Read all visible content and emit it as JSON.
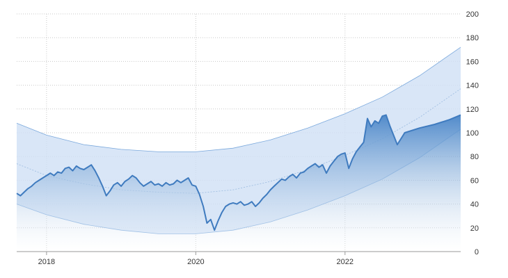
{
  "chart_data": {
    "type": "line",
    "title": "",
    "xlabel": "",
    "ylabel": "",
    "xlim": [
      2017.6,
      2023.55
    ],
    "ylim": [
      0,
      200
    ],
    "x_ticks": [
      2018,
      2020,
      2022
    ],
    "x_tick_labels": [
      "2018",
      "2020",
      "2022"
    ],
    "y_ticks": [
      0,
      20,
      40,
      60,
      80,
      100,
      120,
      140,
      160,
      180,
      200
    ],
    "y_tick_labels": [
      "0",
      "20",
      "40",
      "60",
      "80",
      "100",
      "120",
      "140",
      "160",
      "180",
      "200"
    ],
    "y_axis_side": "right",
    "grid": true,
    "legend": "none",
    "colors": {
      "line": "#3f7bbf",
      "fill_top": "#4a86c8",
      "fill_bottom": "#ffffff",
      "band_fill": "#cfe0f5",
      "band_edge": "#7aa8dc",
      "trend_line": "#9bbbe0",
      "grid": "#c8c8c8",
      "axis": "#999999"
    },
    "series": [
      {
        "type": "area",
        "x": [
          2017.6,
          2017.65,
          2017.7,
          2017.75,
          2017.8,
          2017.85,
          2017.9,
          2017.95,
          2018.0,
          2018.05,
          2018.1,
          2018.15,
          2018.2,
          2018.25,
          2018.3,
          2018.35,
          2018.4,
          2018.45,
          2018.5,
          2018.55,
          2018.6,
          2018.65,
          2018.7,
          2018.75,
          2018.8,
          2018.85,
          2018.9,
          2018.95,
          2019.0,
          2019.05,
          2019.1,
          2019.15,
          2019.2,
          2019.25,
          2019.3,
          2019.35,
          2019.4,
          2019.45,
          2019.5,
          2019.55,
          2019.6,
          2019.65,
          2019.7,
          2019.75,
          2019.8,
          2019.85,
          2019.9,
          2019.95,
          2020.0,
          2020.05,
          2020.1,
          2020.15,
          2020.2,
          2020.25,
          2020.3,
          2020.35,
          2020.4,
          2020.45,
          2020.5,
          2020.55,
          2020.6,
          2020.65,
          2020.7,
          2020.75,
          2020.8,
          2020.85,
          2020.9,
          2020.95,
          2021.0,
          2021.05,
          2021.1,
          2021.15,
          2021.2,
          2021.25,
          2021.3,
          2021.35,
          2021.4,
          2021.45,
          2021.5,
          2021.55,
          2021.6,
          2021.65,
          2021.7,
          2021.75,
          2021.8,
          2021.85,
          2021.9,
          2021.95,
          2022.0,
          2022.05,
          2022.1,
          2022.15,
          2022.2,
          2022.25,
          2022.3,
          2022.35,
          2022.4,
          2022.45,
          2022.5,
          2022.55,
          2022.6,
          2022.65,
          2022.7,
          2022.75,
          2022.8,
          2023.0,
          2023.2,
          2023.4,
          2023.55
        ],
        "values": [
          49,
          47,
          50,
          53,
          55,
          58,
          60,
          62,
          64,
          66,
          64,
          67,
          66,
          70,
          71,
          68,
          72,
          70,
          69,
          71,
          73,
          68,
          62,
          55,
          47,
          51,
          56,
          58,
          55,
          59,
          61,
          64,
          62,
          58,
          55,
          57,
          59,
          56,
          57,
          55,
          58,
          56,
          57,
          60,
          58,
          60,
          62,
          56,
          55,
          48,
          38,
          24,
          27,
          18,
          26,
          33,
          38,
          40,
          41,
          40,
          42,
          39,
          40,
          42,
          38,
          41,
          45,
          48,
          52,
          55,
          58,
          61,
          60,
          63,
          65,
          62,
          66,
          67,
          70,
          72,
          74,
          71,
          73,
          66,
          72,
          76,
          80,
          82,
          83,
          70,
          78,
          84,
          88,
          92,
          112,
          105,
          110,
          108,
          114,
          115,
          106,
          98,
          90,
          95,
          100,
          104,
          107,
          111,
          115
        ]
      },
      {
        "type": "band_upper",
        "x": [
          2017.6,
          2018.0,
          2018.5,
          2019.0,
          2019.5,
          2020.0,
          2020.5,
          2021.0,
          2021.5,
          2022.0,
          2022.5,
          2023.0,
          2023.55
        ],
        "values": [
          108,
          98,
          90,
          86,
          84,
          84,
          87,
          94,
          104,
          116,
          130,
          148,
          172
        ]
      },
      {
        "type": "band_lower",
        "x": [
          2017.6,
          2018.0,
          2018.5,
          2019.0,
          2019.5,
          2020.0,
          2020.5,
          2021.0,
          2021.5,
          2022.0,
          2022.5,
          2023.0,
          2023.55
        ],
        "values": [
          40,
          31,
          23,
          18,
          15,
          15,
          18,
          25,
          35,
          47,
          61,
          79,
          103
        ]
      },
      {
        "type": "trend",
        "x": [
          2017.6,
          2018.0,
          2018.5,
          2019.0,
          2019.5,
          2020.0,
          2020.5,
          2021.0,
          2021.5,
          2022.0,
          2022.5,
          2023.0,
          2023.55
        ],
        "values": [
          74,
          64,
          57,
          52,
          50,
          49,
          52,
          59,
          69,
          81,
          95,
          113,
          137
        ]
      }
    ]
  }
}
